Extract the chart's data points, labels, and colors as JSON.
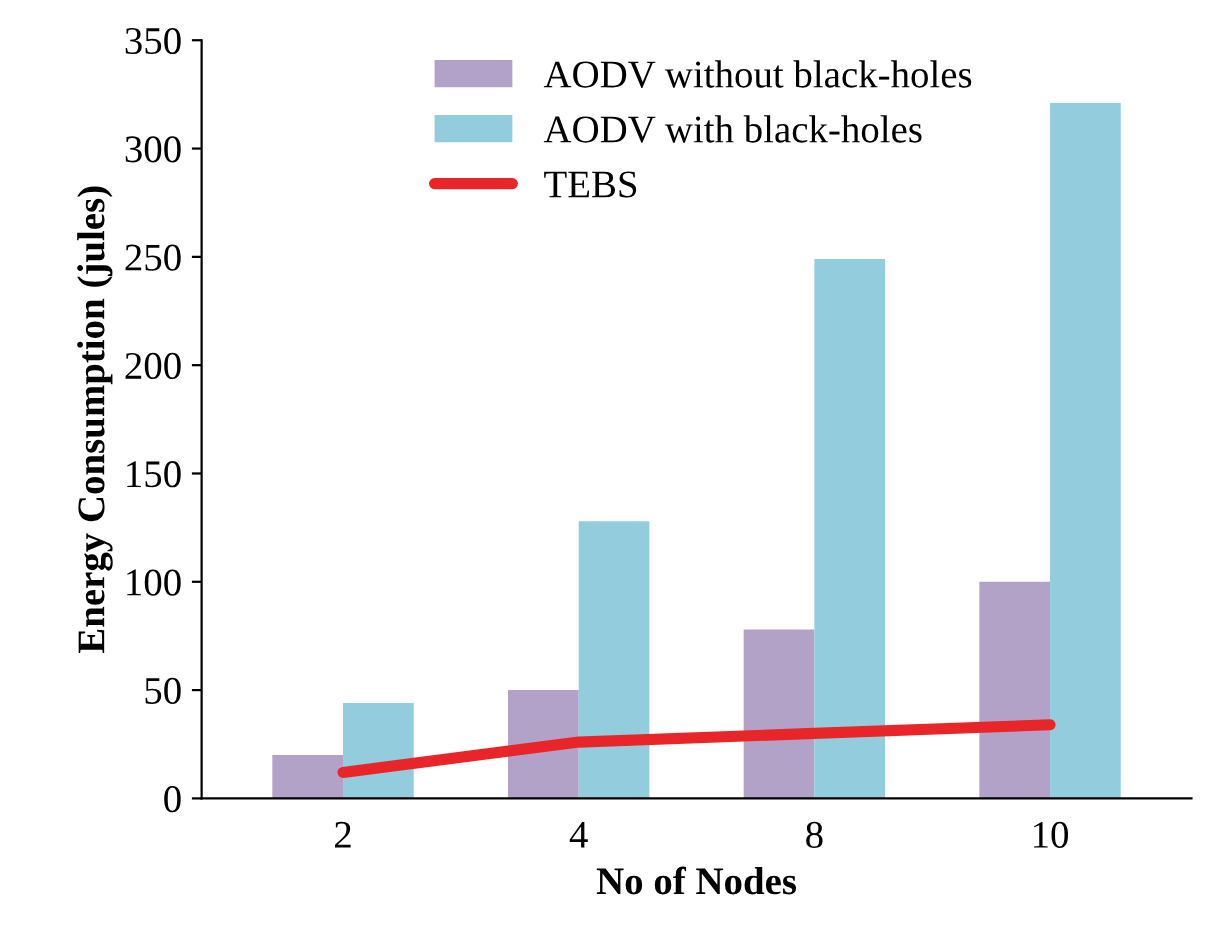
{
  "chart_data": {
    "type": "bar",
    "xlabel": "No of Nodes",
    "ylabel": "Energy Consumption (jules)",
    "categories": [
      "2",
      "4",
      "8",
      "10"
    ],
    "series": [
      {
        "name": "AODV without black-holes",
        "color": "#b3a2c7",
        "values": [
          20,
          50,
          78,
          100
        ]
      },
      {
        "name": "AODV with black-holes",
        "color": "#93cddd",
        "values": [
          44,
          128,
          249,
          321
        ]
      },
      {
        "name": "TEBS",
        "color": "#e8262a",
        "type": "line",
        "values": [
          12,
          26,
          30,
          34
        ]
      }
    ],
    "ylim": [
      0,
      350
    ],
    "yticks": [
      0,
      50,
      100,
      150,
      200,
      250,
      300,
      350
    ],
    "grid": false,
    "legend": "top left"
  }
}
